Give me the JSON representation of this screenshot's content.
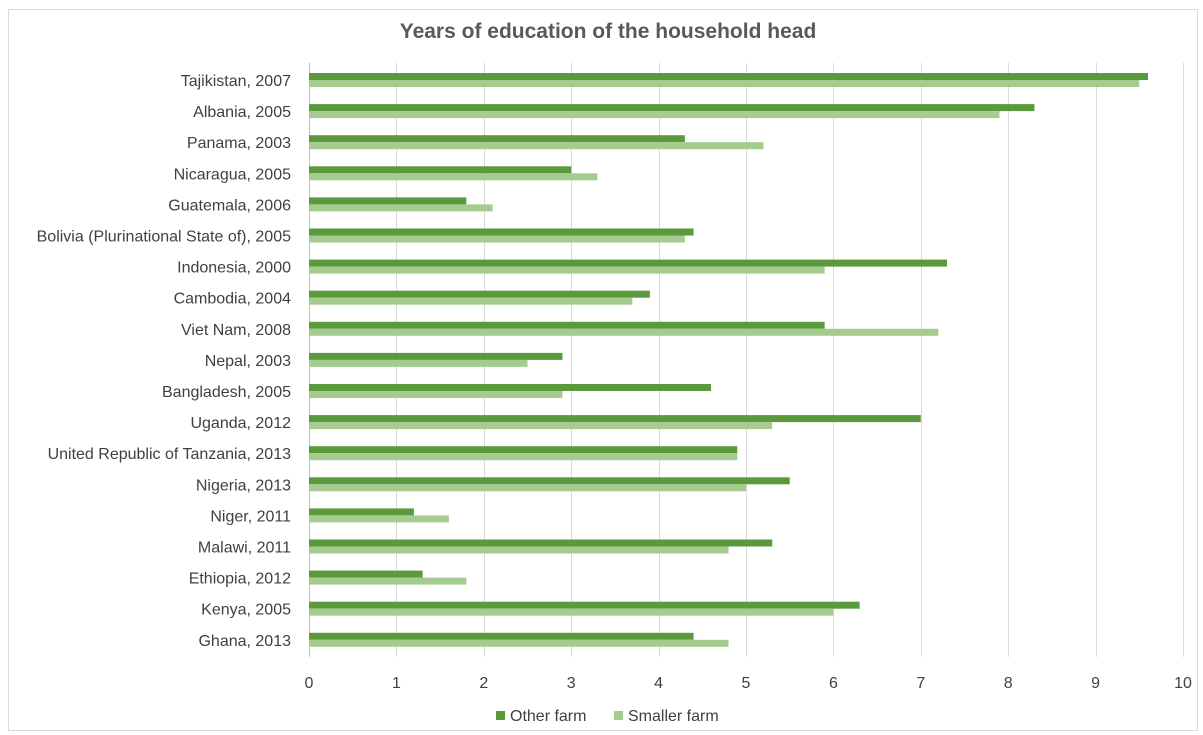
{
  "chart_data": {
    "type": "bar",
    "orientation": "horizontal",
    "title": "Years of education of the household head",
    "categories": [
      "Tajikistan, 2007",
      "Albania, 2005",
      "Panama, 2003",
      "Nicaragua, 2005",
      "Guatemala, 2006",
      "Bolivia (Plurinational State of), 2005",
      "Indonesia, 2000",
      "Cambodia, 2004",
      "Viet Nam, 2008",
      "Nepal, 2003",
      "Bangladesh, 2005",
      "Uganda, 2012",
      "United Republic of Tanzania, 2013",
      "Nigeria, 2013",
      "Niger, 2011",
      "Malawi, 2011",
      "Ethiopia, 2012",
      "Kenya, 2005",
      "Ghana, 2013"
    ],
    "series": [
      {
        "name": "Other farm",
        "color": "#5a9a3c",
        "values": [
          9.6,
          8.3,
          4.3,
          3.0,
          1.8,
          4.4,
          7.3,
          3.9,
          5.9,
          2.9,
          4.6,
          7.0,
          4.9,
          5.5,
          1.2,
          5.3,
          1.3,
          6.3,
          4.4
        ]
      },
      {
        "name": "Smaller farm",
        "color": "#a5cc8e",
        "values": [
          9.5,
          7.9,
          5.2,
          3.3,
          2.1,
          4.3,
          5.9,
          3.7,
          7.2,
          2.5,
          2.9,
          5.3,
          4.9,
          5.0,
          1.6,
          4.8,
          1.8,
          6.0,
          4.8
        ]
      }
    ],
    "xlim": [
      0,
      10
    ],
    "xticks": [
      "0",
      "1",
      "2",
      "3",
      "4",
      "5",
      "6",
      "7",
      "8",
      "9",
      "10"
    ],
    "grid": true,
    "legend_position": "bottom"
  }
}
